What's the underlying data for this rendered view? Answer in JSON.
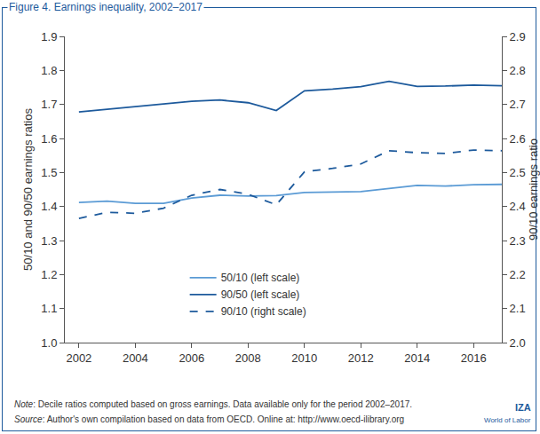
{
  "chart_data": {
    "type": "line",
    "title": "Figure 4. Earnings inequality, 2002–2017",
    "y_label": "50/10 and 90/50 earnings ratios",
    "y2_label": "90/10 earnings ratio",
    "x": [
      2002,
      2003,
      2004,
      2005,
      2006,
      2007,
      2008,
      2009,
      2010,
      2011,
      2012,
      2013,
      2014,
      2015,
      2016,
      2017
    ],
    "series": [
      {
        "name": "50/10 (left scale)",
        "color": "#5b9bd5",
        "line_style": "solid",
        "values": [
          1.412,
          1.416,
          1.409,
          1.409,
          1.425,
          1.433,
          1.431,
          1.432,
          1.441,
          1.443,
          1.444,
          1.453,
          1.462,
          1.46,
          1.464,
          1.465
        ]
      },
      {
        "name": "90/50 (left scale)",
        "color": "#1d5a9c",
        "line_style": "solid",
        "values": [
          1.678,
          1.686,
          1.693,
          1.702,
          1.709,
          1.713,
          1.705,
          1.682,
          1.74,
          1.745,
          1.752,
          1.768,
          1.753,
          1.754,
          1.757,
          1.755
        ]
      },
      {
        "name": "90/10 (right scale)",
        "color": "#1d5a9c",
        "line_style": "dashed",
        "axis": "y2",
        "values": [
          2.365,
          2.383,
          2.38,
          2.395,
          2.433,
          2.45,
          2.436,
          2.405,
          2.502,
          2.512,
          2.525,
          2.564,
          2.558,
          2.556,
          2.566,
          2.564
        ]
      }
    ],
    "xlim": [
      2001.5,
      2017
    ],
    "xticks": [
      2002,
      2004,
      2006,
      2008,
      2010,
      2012,
      2014,
      2016
    ],
    "ylim": [
      1,
      1.9
    ],
    "yticks": [
      {
        "value": 1,
        "label": "1.0"
      },
      1.1,
      1.2,
      1.3,
      1.4,
      1.5,
      1.6,
      1.7,
      1.8,
      1.9
    ],
    "y2lim": [
      2,
      2.9
    ],
    "y2ticks": [
      {
        "value": 2,
        "label": "2.0"
      },
      2.1,
      2.2,
      2.3,
      2.4,
      2.5,
      2.6,
      2.7,
      2.8,
      2.9
    ],
    "grid": false,
    "legend": "lower center",
    "note": "Note: Decile ratios computed based on gross earnings. Data available only for the period 2002–2017.",
    "source": "Source: Author's own compilation based on data from OECD. Online at: http://www.oecd-ilibrary.org",
    "logo": [
      "IZA",
      "World of Labor"
    ]
  }
}
